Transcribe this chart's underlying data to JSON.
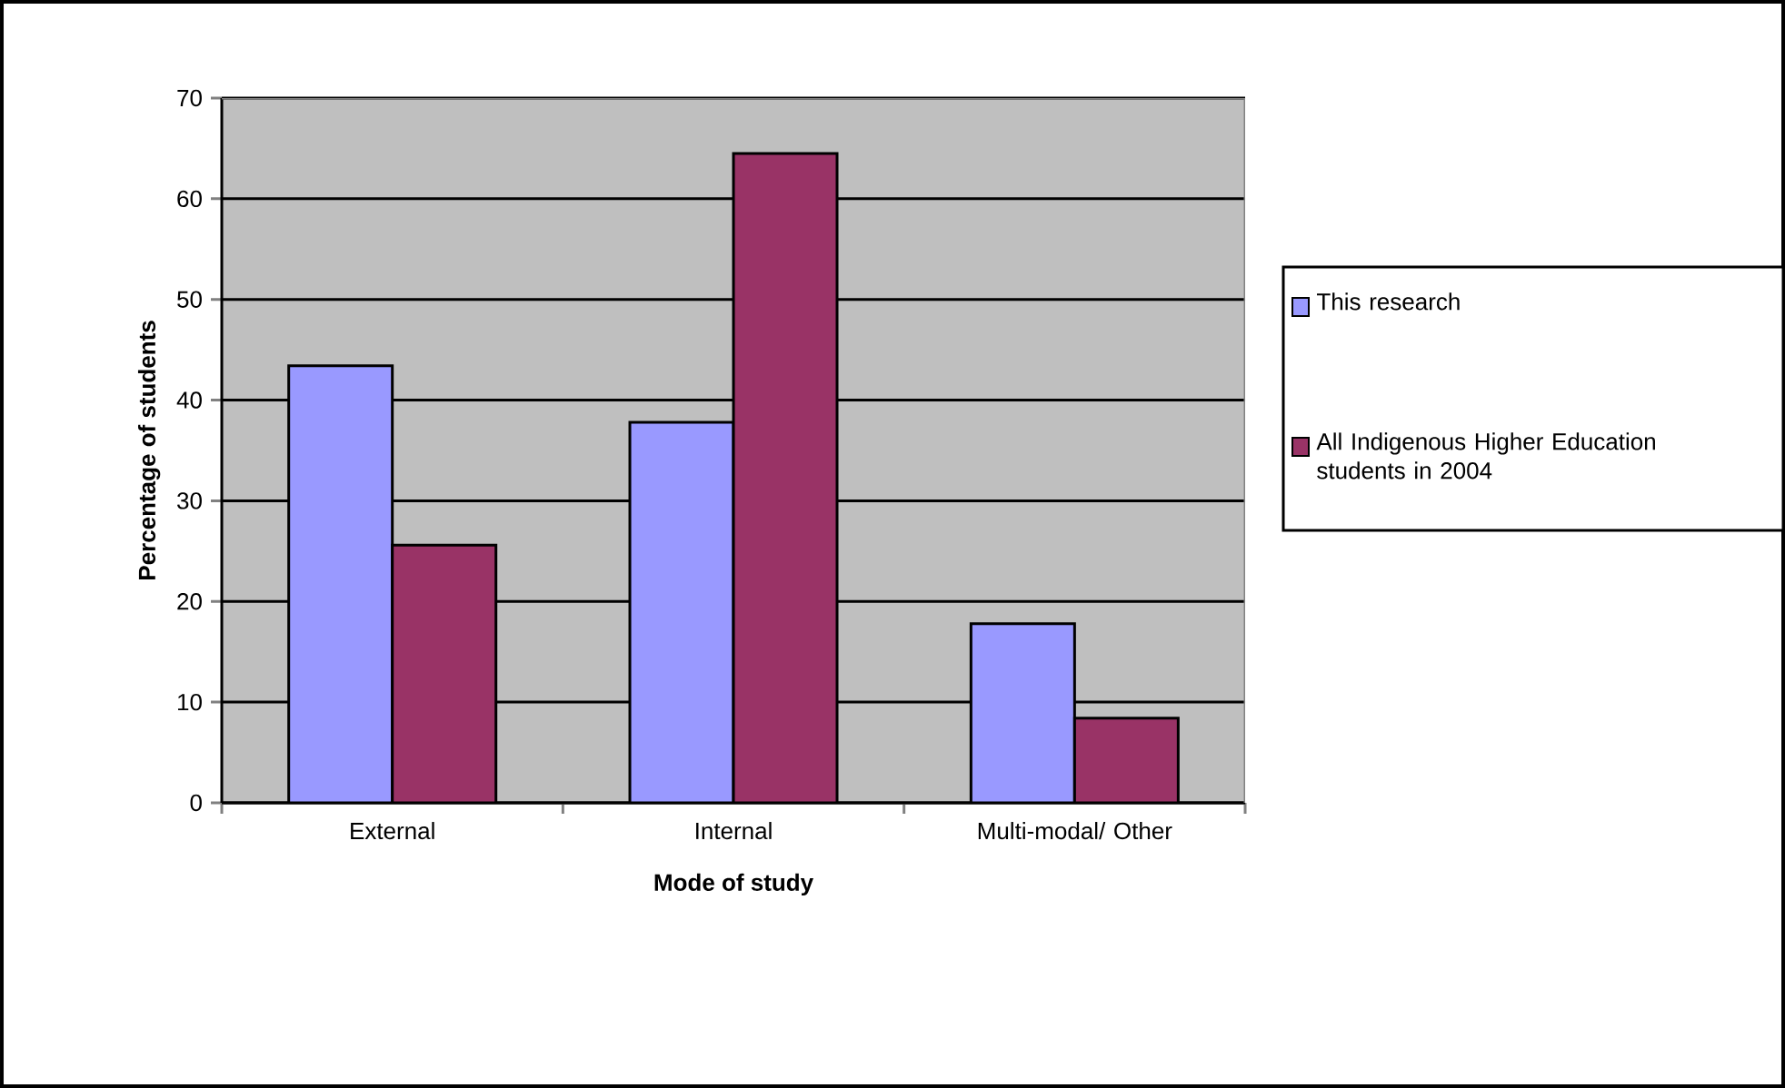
{
  "chart_data": {
    "type": "bar",
    "xlabel": "Mode of study",
    "ylabel": "Percentage of students",
    "categories": [
      "External",
      "Internal",
      "Multi-modal/ Other"
    ],
    "series": [
      {
        "name": "This research",
        "color": "#9999ff",
        "values": [
          43.4,
          37.8,
          17.8
        ]
      },
      {
        "name": "All Indigenous Higher Education students in 2004",
        "color": "#993366",
        "values": [
          25.6,
          64.5,
          8.4
        ]
      }
    ],
    "ylim": [
      0,
      70
    ],
    "yticks": [
      0,
      10,
      20,
      30,
      40,
      50,
      60,
      70
    ],
    "grid": "y",
    "legend": "right"
  }
}
